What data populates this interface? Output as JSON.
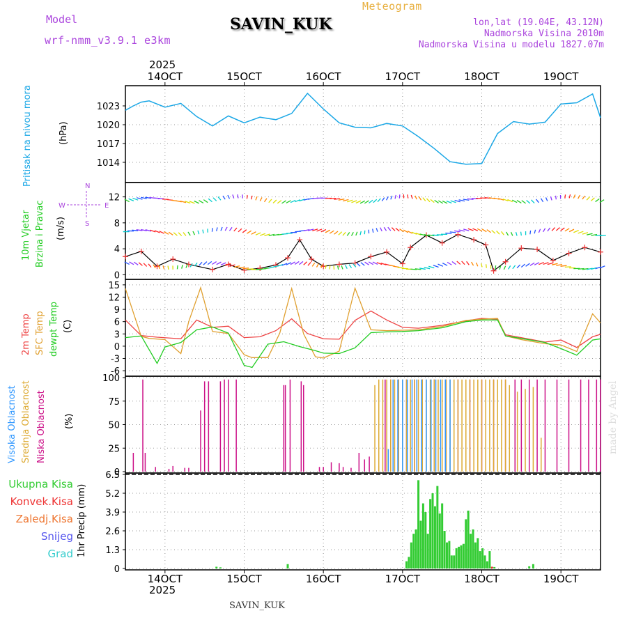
{
  "header": {
    "model_label": "Model",
    "model_name": "wrf-nmm_v3.9.1 e3km",
    "station_title": "SAVIN_KUK",
    "meteogram_label": "Meteogram",
    "lonlat": "lon,lat (19.04E, 43.12N)",
    "altitude": "Nadmorska Visina 2010m",
    "model_altitude": "Nadmorska Visina u modelu 1827.07m"
  },
  "year_label": "2025",
  "footer_station": "SAVIN_KUK",
  "watermark": "made by Angel",
  "colors": {
    "pressure": "#1aa7e6",
    "wind_label": "#22cc22",
    "temp2m": "#ee4444",
    "sfc_temp": "#e0a030",
    "dewpt": "#22cc22",
    "high_cloud": "#3399ff",
    "mid_cloud": "#ddaa33",
    "low_cloud": "#cc1188",
    "precip_total": "#33cc33",
    "precip_conv": "#ee3333",
    "precip_frozen": "#ee7733",
    "snow": "#5555ee",
    "graupel": "#33cccc",
    "header_purple": "#aa44dd",
    "meteogram_orange": "#e8b040"
  },
  "chart_data": [
    {
      "id": "pressure",
      "type": "line",
      "title": "Pritisak na nivou mora",
      "ylabel": "(hPa)",
      "xlabel_ticks": [
        "14OCT",
        "15OCT",
        "16OCT",
        "17OCT",
        "18OCT",
        "19OCT"
      ],
      "x_range_days": [
        13.5,
        19.5
      ],
      "ylim": [
        1011,
        1026
      ],
      "yticks": [
        1014,
        1017,
        1020,
        1023
      ],
      "series": [
        {
          "name": "MSLP",
          "x": [
            13.5,
            13.6,
            13.7,
            13.8,
            14.0,
            14.2,
            14.4,
            14.6,
            14.8,
            15.0,
            15.2,
            15.4,
            15.6,
            15.8,
            16.0,
            16.2,
            16.4,
            16.6,
            16.8,
            17.0,
            17.2,
            17.4,
            17.6,
            17.8,
            18.0,
            18.2,
            18.4,
            18.6,
            18.8,
            19.0,
            19.2,
            19.4,
            19.5
          ],
          "y": [
            1022.3,
            1023,
            1023.6,
            1023.8,
            1022.8,
            1023.4,
            1021.3,
            1019.8,
            1021.4,
            1020.3,
            1021.2,
            1020.8,
            1021.8,
            1025,
            1022.5,
            1020.3,
            1019.6,
            1019.5,
            1020.2,
            1019.8,
            1018.1,
            1016.2,
            1014.1,
            1013.7,
            1013.8,
            1018.6,
            1020.5,
            1020.1,
            1020.4,
            1023.3,
            1023.5,
            1024.9,
            1021.1
          ]
        }
      ]
    },
    {
      "id": "wind",
      "type": "line",
      "title": "10m Vjetar Brzina i Pravac",
      "ylabel": "(m/s)",
      "ylim": [
        -0.5,
        14
      ],
      "yticks": [
        0,
        4,
        8,
        12
      ],
      "compass": {
        "north": "N",
        "south": "S",
        "west": "W",
        "east": "E"
      },
      "series": [
        {
          "name": "wind speed",
          "x": [
            13.5,
            13.7,
            13.9,
            14.1,
            14.3,
            14.6,
            14.8,
            15.0,
            15.2,
            15.4,
            15.55,
            15.7,
            15.85,
            16.0,
            16.2,
            16.4,
            16.6,
            16.8,
            17.0,
            17.1,
            17.3,
            17.5,
            17.7,
            17.9,
            18.05,
            18.15,
            18.3,
            18.5,
            18.7,
            18.9,
            19.1,
            19.3,
            19.5
          ],
          "y": [
            2.8,
            3.6,
            1.3,
            2.4,
            1.6,
            0.8,
            1.6,
            0.7,
            1.0,
            1.5,
            2.6,
            5.4,
            2.4,
            1.3,
            1.6,
            1.8,
            2.8,
            3.5,
            1.7,
            4.2,
            6.1,
            4.9,
            6.2,
            5.4,
            4.6,
            0.6,
            2.0,
            4.1,
            3.9,
            2.2,
            3.3,
            4.2,
            3.5
          ]
        }
      ]
    },
    {
      "id": "temperature",
      "type": "line",
      "title": "2m Temp / SFC Temp / dewpt Temp",
      "ylabel": "(C)",
      "ylim": [
        -7,
        16
      ],
      "yticks": [
        -6,
        -3,
        0,
        3,
        6,
        9,
        12,
        15
      ],
      "legend": [
        "2m Temp",
        "SFC Temp",
        "dewpt Temp"
      ],
      "series": [
        {
          "name": "2m Temp",
          "x": [
            13.5,
            13.7,
            13.9,
            14.2,
            14.4,
            14.6,
            14.8,
            15.0,
            15.2,
            15.4,
            15.6,
            15.8,
            16.0,
            16.2,
            16.4,
            16.6,
            16.8,
            17.0,
            17.2,
            17.5,
            17.8,
            18.0,
            18.2,
            18.3,
            18.5,
            18.8,
            19.0,
            19.2,
            19.4,
            19.5
          ],
          "y": [
            6.4,
            2.6,
            2.2,
            1.8,
            6.4,
            4.6,
            4.9,
            2.1,
            2.3,
            3.8,
            6.7,
            3.1,
            1.8,
            1.7,
            6.3,
            8.6,
            6.4,
            4.6,
            4.4,
            5.1,
            6.2,
            6.8,
            6.6,
            2.8,
            2.1,
            1.0,
            1.5,
            -0.3,
            2.3,
            2.9
          ]
        },
        {
          "name": "SFC Temp",
          "x": [
            13.5,
            13.7,
            13.8,
            14.0,
            14.2,
            14.3,
            14.45,
            14.6,
            14.8,
            15.0,
            15.1,
            15.3,
            15.45,
            15.6,
            15.75,
            15.9,
            16.0,
            16.2,
            16.4,
            16.6,
            16.8,
            17.0,
            17.2,
            17.5,
            17.8,
            18.0,
            18.2,
            18.3,
            18.5,
            18.8,
            19.0,
            19.2,
            19.4,
            19.5
          ],
          "y": [
            14.1,
            2.4,
            1.9,
            1.6,
            -1.8,
            6.0,
            14.3,
            3.6,
            3.1,
            -2.1,
            -2.8,
            -2.8,
            3.2,
            14.1,
            3.0,
            -2.6,
            -2.9,
            -1.2,
            14.2,
            4.0,
            3.8,
            3.9,
            4.0,
            4.8,
            6.3,
            6.6,
            6.8,
            2.5,
            1.6,
            0.6,
            0.3,
            -1.3,
            7.9,
            5.7
          ]
        },
        {
          "name": "dewpt Temp",
          "x": [
            13.5,
            13.7,
            13.9,
            14.0,
            14.2,
            14.4,
            14.6,
            14.8,
            15.0,
            15.1,
            15.3,
            15.5,
            15.7,
            15.9,
            16.0,
            16.2,
            16.4,
            16.6,
            16.8,
            17.0,
            17.2,
            17.5,
            17.8,
            18.0,
            18.2,
            18.3,
            18.5,
            18.8,
            19.0,
            19.2,
            19.4,
            19.5
          ],
          "y": [
            2.1,
            2.5,
            -4.2,
            -0.2,
            0.9,
            4.0,
            4.7,
            3.2,
            -4.7,
            -5.2,
            0.5,
            1.1,
            -0.1,
            -1.1,
            -1.7,
            -1.8,
            -0.4,
            3.3,
            3.5,
            3.6,
            3.8,
            4.5,
            6.0,
            6.4,
            6.4,
            2.5,
            1.9,
            0.9,
            -0.6,
            -2.2,
            1.5,
            1.8
          ]
        }
      ]
    },
    {
      "id": "clouds",
      "type": "bar",
      "title": "Visoka / Srednja / Niska Oblacnost",
      "ylabel": "(%)",
      "ylim": [
        0,
        100
      ],
      "yticks": [
        0,
        25,
        50,
        75,
        100
      ],
      "legend": [
        "Visoka Oblacnost",
        "Srednja Oblacnost",
        "Niska Oblacnost"
      ],
      "series": [
        {
          "name": "Niska Oblacnost",
          "x": [
            13.6,
            13.72,
            13.75,
            13.88,
            14.05,
            14.1,
            14.25,
            14.3,
            14.45,
            14.5,
            14.55,
            14.7,
            14.75,
            14.8,
            14.9,
            15.5,
            15.52,
            15.58,
            15.72,
            15.75,
            15.95,
            16.0,
            16.1,
            16.2,
            16.25,
            16.35,
            16.45,
            16.52,
            16.58,
            16.7,
            16.78,
            16.85,
            16.95,
            17.05,
            17.15,
            17.25,
            17.4,
            17.55,
            17.7,
            17.85,
            18.0,
            18.15,
            18.3,
            18.42,
            18.5,
            18.6,
            18.7,
            18.8,
            18.95,
            19.1,
            19.25,
            19.35,
            19.45,
            19.5
          ],
          "y": [
            20,
            98,
            20,
            5,
            3,
            6,
            4,
            4,
            65,
            96,
            96,
            96,
            98,
            98,
            98,
            92,
            92,
            98,
            96,
            92,
            5,
            5,
            10,
            9,
            5,
            4,
            20,
            13,
            16,
            6,
            98,
            98,
            98,
            98,
            98,
            98,
            98,
            98,
            98,
            98,
            98,
            98,
            98,
            98,
            98,
            98,
            98,
            98,
            98,
            98,
            98,
            98,
            98,
            98
          ]
        },
        {
          "name": "Srednja Oblacnost",
          "x": [
            16.65,
            16.7,
            16.75,
            16.8,
            16.85,
            16.9,
            16.95,
            17.0,
            17.05,
            17.1,
            17.15,
            17.2,
            17.25,
            17.3,
            17.35,
            17.4,
            17.45,
            17.5,
            17.55,
            17.6,
            17.65,
            17.7,
            17.75,
            17.8,
            17.85,
            17.9,
            17.95,
            18.0,
            18.05,
            18.1,
            18.15,
            18.2,
            18.25,
            18.3,
            18.35,
            18.45,
            18.55,
            18.65,
            18.75
          ],
          "y": [
            92,
            98,
            98,
            98,
            98,
            98,
            98,
            98,
            98,
            98,
            98,
            98,
            98,
            98,
            98,
            98,
            98,
            98,
            98,
            98,
            98,
            98,
            98,
            98,
            98,
            98,
            98,
            98,
            98,
            98,
            98,
            98,
            98,
            98,
            92,
            85,
            88,
            90,
            36
          ]
        },
        {
          "name": "Visoka Oblacnost",
          "x": [
            16.82,
            16.88,
            16.94,
            17.0,
            17.06,
            17.12,
            17.18,
            17.24,
            17.3,
            17.36,
            17.42,
            17.48,
            17.54,
            17.6
          ],
          "y": [
            24,
            98,
            98,
            98,
            98,
            98,
            98,
            98,
            98,
            98,
            98,
            98,
            98,
            98
          ]
        }
      ]
    },
    {
      "id": "precip",
      "type": "bar",
      "title": "1hr Precip",
      "ylabel": "1hr Precip (mm)",
      "ylim": [
        0,
        6.5
      ],
      "yticks": [
        0,
        1.3,
        2.6,
        3.9,
        5.2,
        6.5
      ],
      "legend": [
        "Ukupna Kisa",
        "Konvek.Kisa",
        "Zaledj.Kisa",
        "Snijeg",
        "Grad"
      ],
      "series": [
        {
          "name": "Ukupna Kisa",
          "x": [
            14.65,
            14.7,
            15.55,
            17.05,
            17.08,
            17.11,
            17.14,
            17.17,
            17.2,
            17.23,
            17.26,
            17.29,
            17.32,
            17.35,
            17.38,
            17.41,
            17.44,
            17.47,
            17.5,
            17.53,
            17.56,
            17.59,
            17.62,
            17.65,
            17.68,
            17.71,
            17.74,
            17.77,
            17.8,
            17.83,
            17.86,
            17.89,
            17.92,
            17.95,
            17.98,
            18.01,
            18.04,
            18.07,
            18.1,
            18.13,
            18.16,
            18.19,
            18.22,
            18.25,
            18.28,
            18.31,
            18.6,
            18.65
          ],
          "y": [
            0.12,
            0.08,
            0.3,
            0.5,
            0.8,
            1.8,
            2.4,
            2.7,
            6.1,
            3.3,
            4.5,
            3.9,
            2.4,
            4.8,
            5.2,
            4.3,
            5.7,
            3.8,
            4.5,
            2.6,
            1.8,
            1.9,
            0.9,
            0.9,
            1.4,
            1.5,
            1.6,
            1.7,
            3.4,
            4.0,
            2.4,
            2.7,
            1.8,
            2.1,
            1.2,
            1.4,
            0.9,
            0.5,
            1.2,
            0.1,
            0.1,
            0.0,
            0.0,
            0.0,
            0.0,
            0.0,
            0.15,
            0.3
          ]
        },
        {
          "name": "Konvek.Kisa",
          "x": [
            18.13
          ],
          "y": [
            0.12
          ]
        }
      ]
    }
  ]
}
